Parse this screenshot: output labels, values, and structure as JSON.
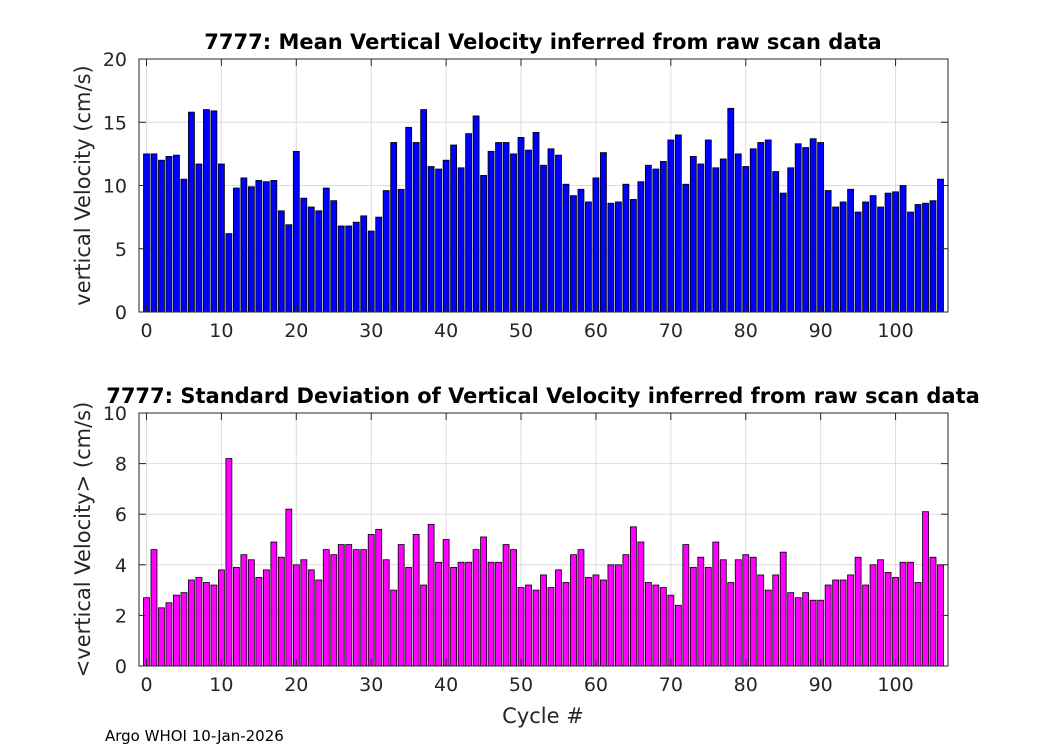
{
  "footer": "Argo WHOI 10-Jan-2026",
  "chart_data": [
    {
      "type": "bar",
      "title": "7777: Mean Vertical Velocity inferred from raw scan data",
      "xlabel": "",
      "ylabel": "vertical Velocity (cm/s)",
      "xlim": [
        -1,
        107
      ],
      "ylim": [
        0,
        20
      ],
      "xticks": [
        0,
        10,
        20,
        30,
        40,
        50,
        60,
        70,
        80,
        90,
        100
      ],
      "yticks": [
        0,
        5,
        10,
        15,
        20
      ],
      "grid": true,
      "color": "#0000ff",
      "x": [
        0,
        1,
        2,
        3,
        4,
        5,
        6,
        7,
        8,
        9,
        10,
        11,
        12,
        13,
        14,
        15,
        16,
        17,
        18,
        19,
        20,
        21,
        22,
        23,
        24,
        25,
        26,
        27,
        28,
        29,
        30,
        31,
        32,
        33,
        34,
        35,
        36,
        37,
        38,
        39,
        40,
        41,
        42,
        43,
        44,
        45,
        46,
        47,
        48,
        49,
        50,
        51,
        52,
        53,
        54,
        55,
        56,
        57,
        58,
        59,
        60,
        61,
        62,
        63,
        64,
        65,
        66,
        67,
        68,
        69,
        70,
        71,
        72,
        73,
        74,
        75,
        76,
        77,
        78,
        79,
        80,
        81,
        82,
        83,
        84,
        85,
        86,
        87,
        88,
        89,
        90,
        91,
        92,
        93,
        94,
        95,
        96,
        97,
        98,
        99,
        100,
        101,
        102,
        103,
        104,
        105,
        106
      ],
      "values": [
        12.5,
        12.5,
        12.0,
        12.3,
        12.4,
        10.5,
        15.8,
        11.7,
        16.0,
        15.9,
        11.7,
        6.2,
        9.8,
        10.6,
        9.9,
        10.4,
        10.3,
        10.4,
        8.0,
        6.9,
        12.7,
        9.0,
        8.3,
        8.0,
        9.8,
        8.8,
        6.8,
        6.8,
        7.1,
        7.6,
        6.4,
        7.5,
        9.6,
        13.4,
        9.7,
        14.6,
        13.4,
        16.0,
        11.5,
        11.3,
        12.0,
        13.2,
        11.4,
        14.1,
        15.5,
        10.8,
        12.7,
        13.4,
        13.4,
        12.5,
        13.8,
        12.8,
        14.2,
        11.6,
        12.9,
        12.4,
        10.1,
        9.2,
        9.7,
        8.7,
        10.6,
        12.6,
        8.6,
        8.7,
        10.1,
        8.9,
        10.3,
        11.6,
        11.3,
        11.9,
        13.6,
        14.0,
        10.1,
        12.3,
        11.7,
        13.6,
        11.4,
        12.1,
        16.1,
        12.5,
        11.5,
        12.9,
        13.4,
        13.6,
        11.1,
        9.4,
        11.4,
        13.3,
        13.0,
        13.7,
        13.4,
        9.6,
        8.3,
        8.7,
        9.7,
        7.9,
        8.7,
        9.2,
        8.3,
        9.4,
        9.5,
        10.0,
        7.9,
        8.5,
        8.6,
        8.8,
        10.5
      ]
    },
    {
      "type": "bar",
      "title": "7777: Standard Deviation of Vertical Velocity inferred from raw scan data",
      "xlabel": "Cycle #",
      "ylabel": "<vertical Velocity> (cm/s)",
      "xlim": [
        -1,
        107
      ],
      "ylim": [
        0,
        10
      ],
      "xticks": [
        0,
        10,
        20,
        30,
        40,
        50,
        60,
        70,
        80,
        90,
        100
      ],
      "yticks": [
        0,
        2,
        4,
        6,
        8,
        10
      ],
      "grid": true,
      "color": "#ff00ff",
      "x": [
        0,
        1,
        2,
        3,
        4,
        5,
        6,
        7,
        8,
        9,
        10,
        11,
        12,
        13,
        14,
        15,
        16,
        17,
        18,
        19,
        20,
        21,
        22,
        23,
        24,
        25,
        26,
        27,
        28,
        29,
        30,
        31,
        32,
        33,
        34,
        35,
        36,
        37,
        38,
        39,
        40,
        41,
        42,
        43,
        44,
        45,
        46,
        47,
        48,
        49,
        50,
        51,
        52,
        53,
        54,
        55,
        56,
        57,
        58,
        59,
        60,
        61,
        62,
        63,
        64,
        65,
        66,
        67,
        68,
        69,
        70,
        71,
        72,
        73,
        74,
        75,
        76,
        77,
        78,
        79,
        80,
        81,
        82,
        83,
        84,
        85,
        86,
        87,
        88,
        89,
        90,
        91,
        92,
        93,
        94,
        95,
        96,
        97,
        98,
        99,
        100,
        101,
        102,
        103,
        104,
        105,
        106
      ],
      "values": [
        2.7,
        4.6,
        2.3,
        2.5,
        2.8,
        2.9,
        3.4,
        3.5,
        3.3,
        3.2,
        3.8,
        8.2,
        3.9,
        4.4,
        4.2,
        3.5,
        3.8,
        4.9,
        4.3,
        6.2,
        4.0,
        4.2,
        3.8,
        3.4,
        4.6,
        4.4,
        4.8,
        4.8,
        4.6,
        4.6,
        5.2,
        5.4,
        4.2,
        3.0,
        4.8,
        3.9,
        5.2,
        3.2,
        5.6,
        4.1,
        5.0,
        3.9,
        4.1,
        4.1,
        4.6,
        5.1,
        4.1,
        4.1,
        4.8,
        4.6,
        3.1,
        3.2,
        3.0,
        3.6,
        3.1,
        3.8,
        3.3,
        4.4,
        4.6,
        3.5,
        3.6,
        3.4,
        4.0,
        4.0,
        4.4,
        5.5,
        4.9,
        3.3,
        3.2,
        3.1,
        2.8,
        2.4,
        4.8,
        3.9,
        4.3,
        3.9,
        4.9,
        4.2,
        3.3,
        4.2,
        4.4,
        4.3,
        3.6,
        3.0,
        3.6,
        4.5,
        2.9,
        2.7,
        2.9,
        2.6,
        2.6,
        3.2,
        3.4,
        3.4,
        3.6,
        4.3,
        3.2,
        4.0,
        4.2,
        3.7,
        3.5,
        4.1,
        4.1,
        3.3,
        6.1,
        4.3,
        4.0
      ]
    }
  ]
}
